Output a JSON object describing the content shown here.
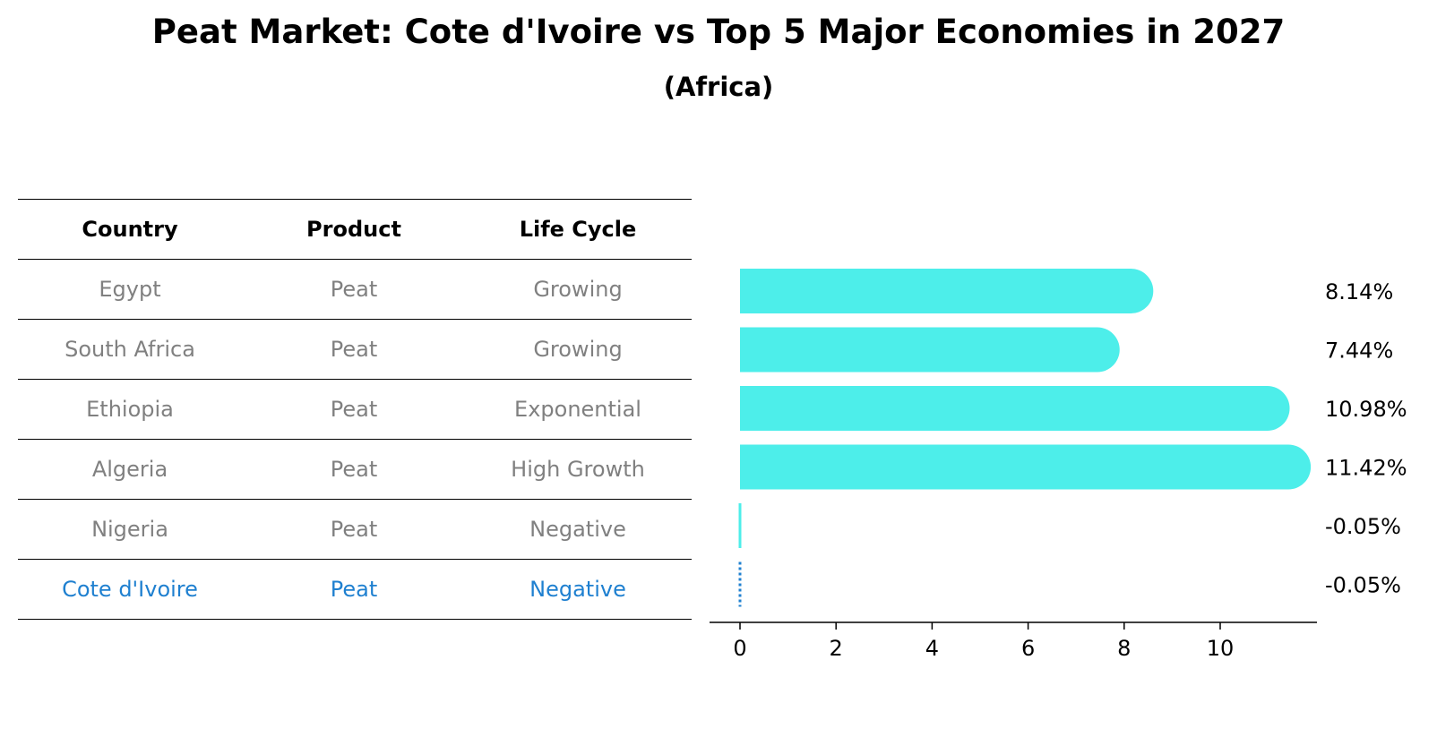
{
  "title": "Peat Market: Cote d'Ivoire vs Top 5 Major Economies in 2027",
  "subtitle": "(Africa)",
  "table": {
    "headers": [
      "Country",
      "Product",
      "Life Cycle"
    ],
    "rows": [
      [
        "Egypt",
        "Peat",
        "Growing"
      ],
      [
        "South Africa",
        "Peat",
        "Growing"
      ],
      [
        "Ethiopia",
        "Peat",
        "Exponential"
      ],
      [
        "Algeria",
        "Peat",
        "High Growth"
      ],
      [
        "Nigeria",
        "Peat",
        "Negative"
      ],
      [
        "Cote d'Ivoire",
        "Peat",
        "Negative"
      ]
    ],
    "highlight_row": 5
  },
  "colors": {
    "bar": "#4deeea",
    "highlight": "#1f80d0",
    "muted_text": "#808080",
    "axis": "#000000"
  },
  "chart_data": {
    "type": "bar",
    "orientation": "horizontal",
    "categories": [
      "Egypt",
      "South Africa",
      "Ethiopia",
      "Algeria",
      "Nigeria",
      "Cote d'Ivoire"
    ],
    "values": [
      8.14,
      7.44,
      10.98,
      11.42,
      -0.05,
      -0.05
    ],
    "value_labels": [
      "8.14%",
      "7.44%",
      "10.98%",
      "11.42%",
      "-0.05%",
      "-0.05%"
    ],
    "xticks": [
      "0",
      "2",
      "4",
      "6",
      "8",
      "10"
    ],
    "xlim": [
      -0.6,
      12.0
    ],
    "xlabel": "",
    "ylabel": "",
    "grid": false
  }
}
